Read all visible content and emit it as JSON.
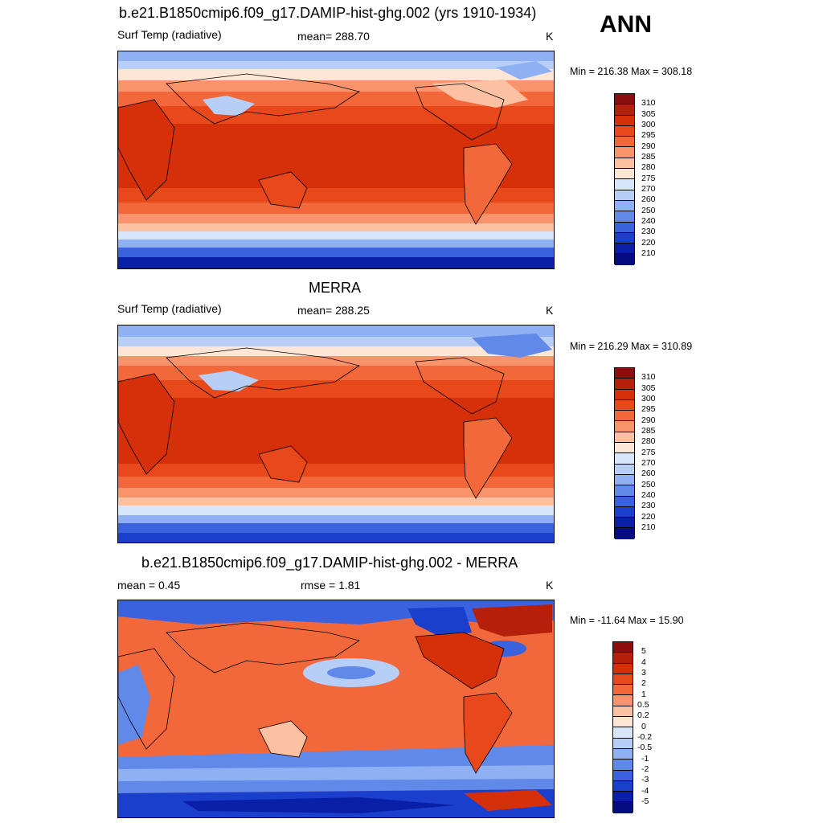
{
  "season": "ANN",
  "panels": [
    {
      "title": "b.e21.B1850cmip6.f09_g17.DAMIP-hist-ghg.002 (yrs 1910-1934)",
      "left": "Surf Temp (radiative)",
      "center": "mean= 288.70",
      "units": "K",
      "minmax": "Min = 216.38 Max = 308.18",
      "levels": [
        "310",
        "305",
        "300",
        "295",
        "290",
        "285",
        "280",
        "275",
        "270",
        "260",
        "250",
        "240",
        "230",
        "220",
        "210"
      ],
      "colors": [
        "#8c0d0d",
        "#b5200d",
        "#d6300b",
        "#e8481a",
        "#f3683a",
        "#f9936b",
        "#fcc0a3",
        "#fde6d6",
        "#d8e6fb",
        "#b7cef7",
        "#8fb0f2",
        "#6189ea",
        "#3a62df",
        "#1a3fcc",
        "#0a1fa8",
        "#050b80"
      ]
    },
    {
      "title": "MERRA",
      "left": "Surf Temp (radiative)",
      "center": "mean= 288.25",
      "units": "K",
      "minmax": "Min = 216.29 Max = 310.89",
      "levels": [
        "310",
        "305",
        "300",
        "295",
        "290",
        "285",
        "280",
        "275",
        "270",
        "260",
        "250",
        "240",
        "230",
        "220",
        "210"
      ],
      "colors": [
        "#8c0d0d",
        "#b5200d",
        "#d6300b",
        "#e8481a",
        "#f3683a",
        "#f9936b",
        "#fcc0a3",
        "#fde6d6",
        "#d8e6fb",
        "#b7cef7",
        "#8fb0f2",
        "#6189ea",
        "#3a62df",
        "#1a3fcc",
        "#0a1fa8",
        "#050b80"
      ]
    },
    {
      "title": "b.e21.B1850cmip6.f09_g17.DAMIP-hist-ghg.002 - MERRA",
      "left": "mean =   0.45",
      "center": "rmse =   1.81",
      "units": "K",
      "minmax": "Min = -11.64 Max =  15.90",
      "levels": [
        "5",
        "4",
        "3",
        "2",
        "1",
        "0.5",
        "0.2",
        "0",
        "-0.2",
        "-0.5",
        "-1",
        "-2",
        "-3",
        "-4",
        "-5"
      ],
      "colors": [
        "#8c0d0d",
        "#b5200d",
        "#d6300b",
        "#e8481a",
        "#f3683a",
        "#f9936b",
        "#fcc0a3",
        "#fde6d6",
        "#d8e6fb",
        "#b7cef7",
        "#8fb0f2",
        "#6189ea",
        "#3a62df",
        "#1a3fcc",
        "#0a1fa8",
        "#050b80"
      ]
    }
  ]
}
